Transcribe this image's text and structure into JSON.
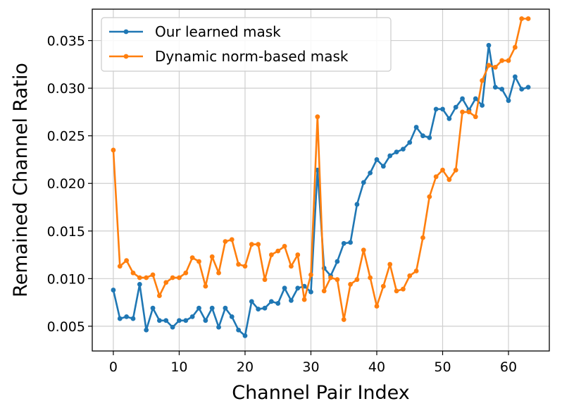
{
  "chart_data": {
    "type": "line",
    "title": "",
    "xlabel": "Channel Pair Index",
    "ylabel": "Remained Channel Ratio",
    "xlim": [
      -3.2,
      66.2
    ],
    "ylim": [
      0.0024,
      0.0383
    ],
    "xticks": [
      0,
      10,
      20,
      30,
      40,
      50,
      60
    ],
    "yticks": [
      0.005,
      0.01,
      0.015,
      0.02,
      0.025,
      0.03,
      0.035
    ],
    "ytick_labels": [
      "0.005",
      "0.010",
      "0.015",
      "0.020",
      "0.025",
      "0.030",
      "0.035"
    ],
    "grid": true,
    "legend_position": "top-left",
    "series": [
      {
        "name": "Our learned mask",
        "color": "#1f77b4",
        "marker": "circle",
        "values": [
          0.0088,
          0.0058,
          0.006,
          0.0058,
          0.0094,
          0.0046,
          0.0069,
          0.0056,
          0.0056,
          0.0049,
          0.0056,
          0.0056,
          0.006,
          0.0069,
          0.0056,
          0.0069,
          0.0049,
          0.0069,
          0.006,
          0.0046,
          0.004,
          0.0076,
          0.0068,
          0.0069,
          0.0076,
          0.0074,
          0.009,
          0.0077,
          0.009,
          0.0092,
          0.0086,
          0.0214,
          0.0111,
          0.0103,
          0.0118,
          0.0137,
          0.0138,
          0.0178,
          0.0201,
          0.0211,
          0.0225,
          0.0218,
          0.0229,
          0.0233,
          0.0236,
          0.0243,
          0.0259,
          0.025,
          0.0248,
          0.0278,
          0.0278,
          0.0268,
          0.028,
          0.0289,
          0.0277,
          0.0289,
          0.0282,
          0.0345,
          0.0301,
          0.0299,
          0.0287,
          0.0312,
          0.0299,
          0.0301
        ]
      },
      {
        "name": "Dynamic norm-based mask",
        "color": "#ff7f0e",
        "marker": "circle",
        "values": [
          0.0235,
          0.0113,
          0.0119,
          0.0106,
          0.0101,
          0.0101,
          0.0104,
          0.0082,
          0.0096,
          0.0101,
          0.0101,
          0.0106,
          0.0122,
          0.0118,
          0.0092,
          0.0123,
          0.0106,
          0.0139,
          0.0141,
          0.0115,
          0.0113,
          0.0136,
          0.0136,
          0.0099,
          0.0125,
          0.0129,
          0.0134,
          0.0113,
          0.0125,
          0.0078,
          0.0104,
          0.027,
          0.0087,
          0.0101,
          0.0099,
          0.0057,
          0.0094,
          0.0099,
          0.013,
          0.0101,
          0.0071,
          0.0092,
          0.0115,
          0.0087,
          0.0089,
          0.0103,
          0.0108,
          0.0143,
          0.0186,
          0.0207,
          0.0214,
          0.0204,
          0.0214,
          0.0275,
          0.0275,
          0.027,
          0.0308,
          0.0324,
          0.0322,
          0.0329,
          0.0329,
          0.0343,
          0.0373,
          0.0373
        ]
      }
    ]
  }
}
